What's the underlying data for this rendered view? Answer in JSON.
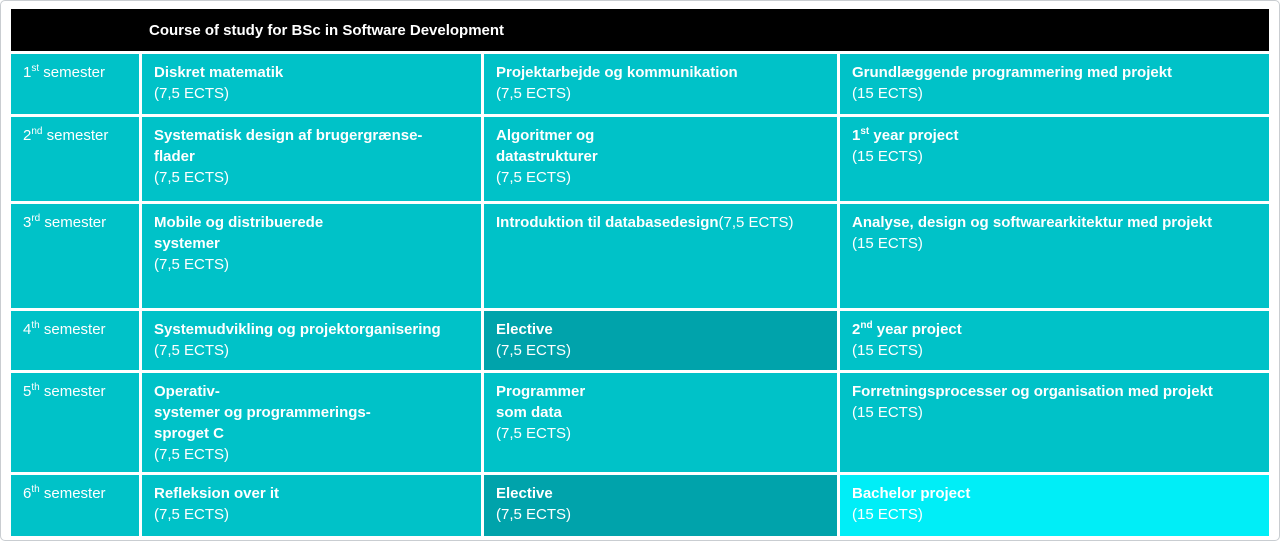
{
  "title": "Course of study for BSc in Software Development",
  "colors": {
    "cell": "#00c2c8",
    "cell-dark": "#00a3ab",
    "cell-bright": "#00eef7",
    "header-bg": "#000000",
    "text": "#ffffff",
    "page-border": "#c9cdd1"
  },
  "rows": [
    {
      "sem": {
        "num": "1",
        "sup": "st",
        "rest": " semester"
      },
      "cells": [
        {
          "title": "Diskret matematik",
          "ects": "(7,5 ECTS)",
          "variant": "normal"
        },
        {
          "title": "Projektarbejde og kommunikation",
          "ects": "(7,5 ECTS)",
          "variant": "normal"
        },
        {
          "title": "Grundlæggende programmering med projekt",
          "ects": "(15 ECTS)",
          "variant": "normal"
        }
      ]
    },
    {
      "sem": {
        "num": "2",
        "sup": "nd",
        "rest": " semester"
      },
      "cells": [
        {
          "title": "Systematisk design af brugergrænse-\nflader",
          "ects": "(7,5 ECTS)",
          "variant": "normal"
        },
        {
          "title": "Algoritmer og\ndatastrukturer",
          "ects": "(7,5 ECTS)",
          "variant": "normal"
        },
        {
          "num": "1",
          "sup": "st",
          "rest": " year project",
          "ects": "(15 ECTS)",
          "variant": "normal"
        }
      ]
    },
    {
      "sem": {
        "num": "3",
        "sup": "rd",
        "rest": " semester"
      },
      "cells": [
        {
          "title": "Mobile og distribuerede\nsystemer",
          "ects": "(7,5 ECTS)",
          "variant": "normal"
        },
        {
          "title": "Introduktion til databasedesign",
          "ects": "(7,5 ECTS)",
          "variant": "normal",
          "ects_inline": true
        },
        {
          "title": "Analyse, design og softwarearkitektur med projekt",
          "ects": "(15 ECTS)",
          "variant": "normal"
        }
      ]
    },
    {
      "sem": {
        "num": "4",
        "sup": "th",
        "rest": " semester"
      },
      "cells": [
        {
          "title": "Systemudvikling og projektorganisering",
          "ects": "(7,5 ECTS)",
          "variant": "normal"
        },
        {
          "title": "Elective",
          "ects": "(7,5 ECTS)",
          "variant": "dark"
        },
        {
          "num": "2",
          "sup": "nd",
          "rest": " year project",
          "ects": "(15 ECTS)",
          "variant": "normal"
        }
      ]
    },
    {
      "sem": {
        "num": "5",
        "sup": "th",
        "rest": " semester"
      },
      "cells": [
        {
          "title": "Operativ-\nsystemer og programmerings-\nsproget C",
          "ects": "(7,5 ECTS)",
          "variant": "normal"
        },
        {
          "title": "Programmer\nsom data",
          "ects": "(7,5 ECTS)",
          "variant": "normal"
        },
        {
          "title": "Forretningsprocesser og organisation med projekt",
          "ects": "(15 ECTS)",
          "variant": "normal"
        }
      ]
    },
    {
      "sem": {
        "num": "6",
        "sup": "th",
        "rest": " semester"
      },
      "cells": [
        {
          "title": "Refleksion over it",
          "ects": "(7,5 ECTS)",
          "variant": "normal"
        },
        {
          "title": "Elective",
          "ects": "(7,5 ECTS)",
          "variant": "dark"
        },
        {
          "title": "Bachelor project",
          "ects": "(15 ECTS)",
          "variant": "bright"
        }
      ]
    }
  ]
}
